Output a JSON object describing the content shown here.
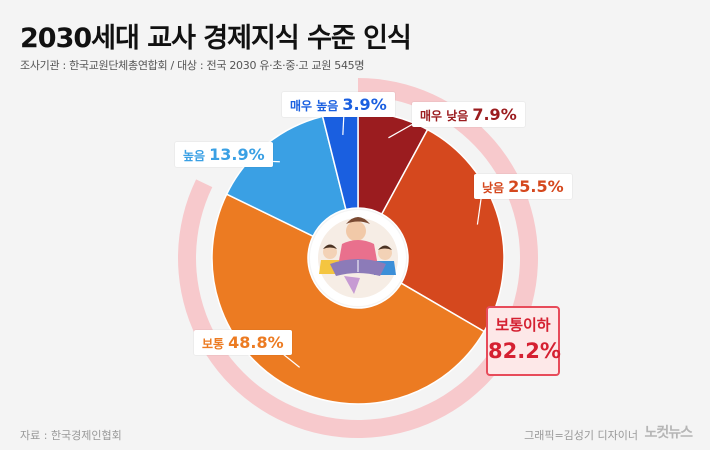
{
  "header": {
    "title": "2030세대 교사 경제지식 수준 인식",
    "subtitle": "조사기관 : 한국교원단체총연합회 / 대상 : 전국 2030 유·초·중·고 교원 545명"
  },
  "chart_data": {
    "type": "pie",
    "variant": "donut",
    "order": "clockwise from top",
    "slices": [
      {
        "name": "매우 낮음",
        "value": 7.9,
        "label": "7.9%",
        "color": "#9b1c1f"
      },
      {
        "name": "낮음",
        "value": 25.5,
        "label": "25.5%",
        "color": "#d5481e"
      },
      {
        "name": "보통",
        "value": 48.8,
        "label": "48.8%",
        "color": "#ec7b22"
      },
      {
        "name": "높음",
        "value": 13.9,
        "label": "13.9%",
        "color": "#3aa0e4"
      },
      {
        "name": "매우 높음",
        "value": 3.9,
        "label": "3.9%",
        "color": "#1a5fe0"
      }
    ],
    "highlight": {
      "name": "보통이하",
      "value": 82.2,
      "label": "82.2%",
      "color": "#f7c9cc"
    }
  },
  "footer": {
    "source": "자료 : 한국경제인협회",
    "credit": "그래픽=김성기 디자이너",
    "logo": "노컷뉴스"
  }
}
